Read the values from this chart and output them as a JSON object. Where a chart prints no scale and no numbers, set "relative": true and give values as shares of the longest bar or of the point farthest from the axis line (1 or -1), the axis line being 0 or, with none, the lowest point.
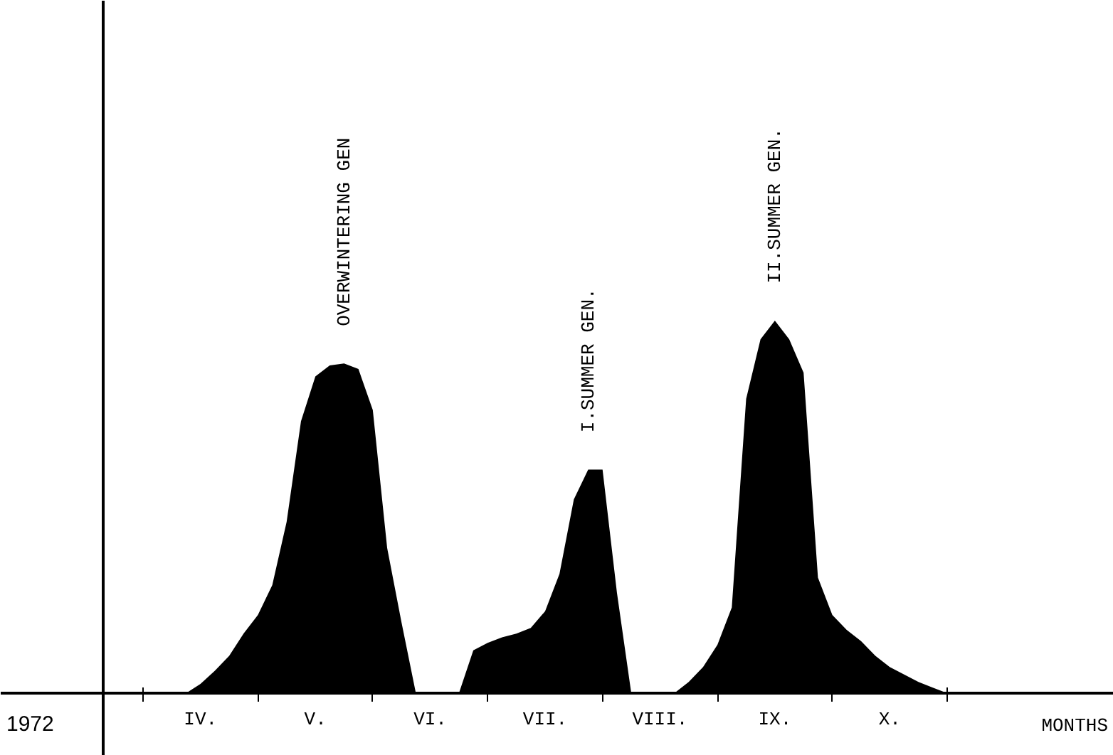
{
  "chart_data": {
    "type": "area",
    "relative": true,
    "xlabel": "MONTHS",
    "annotations": [
      "1972"
    ],
    "categories": [
      null,
      null,
      null,
      null,
      "IV.",
      null,
      null,
      null,
      null,
      null,
      null,
      null,
      "V.",
      null,
      null,
      null,
      null,
      null,
      null,
      null,
      "VI.",
      null,
      null,
      null,
      null,
      null,
      null,
      null,
      "VII.",
      null,
      null,
      null,
      null,
      null,
      null,
      null,
      "VIII.",
      null,
      null,
      null,
      null,
      null,
      null,
      null,
      "IX.",
      null,
      null,
      null,
      null,
      null,
      null,
      null,
      "X.",
      null,
      null,
      null,
      null
    ],
    "grid": false,
    "legend": false,
    "series": [
      {
        "name": "OVERWINTERING GEN",
        "color": "#000000",
        "values": [
          null,
          null,
          null,
          0,
          0.025,
          0.06,
          0.1,
          0.16,
          0.21,
          0.29,
          0.46,
          0.73,
          0.85,
          0.88,
          0.885,
          0.87,
          0.76,
          0.39,
          0.19,
          0,
          null,
          null,
          null,
          null,
          null,
          null,
          null,
          null,
          null,
          null,
          null,
          null,
          null,
          null,
          null,
          null,
          null,
          null,
          null,
          null,
          null,
          null,
          null,
          null,
          null,
          null,
          null,
          null,
          null,
          null,
          null,
          null,
          null,
          null,
          null,
          null,
          null
        ]
      },
      {
        "name": "I.SUMMER GEN.",
        "color": "#000000",
        "values": [
          null,
          null,
          null,
          null,
          null,
          null,
          null,
          null,
          null,
          null,
          null,
          null,
          null,
          null,
          null,
          null,
          null,
          null,
          null,
          null,
          null,
          null,
          0,
          0.115,
          0.135,
          0.15,
          0.16,
          0.175,
          0.22,
          0.32,
          0.52,
          0.6,
          0.6,
          0.27,
          0,
          null,
          null,
          null,
          null,
          null,
          null,
          null,
          null,
          null,
          null,
          null,
          null,
          null,
          null,
          null,
          null,
          null,
          null,
          null,
          null,
          null,
          null
        ]
      },
      {
        "name": "II.SUMMER GEN.",
        "color": "#000000",
        "values": [
          null,
          null,
          null,
          null,
          null,
          null,
          null,
          null,
          null,
          null,
          null,
          null,
          null,
          null,
          null,
          null,
          null,
          null,
          null,
          null,
          null,
          null,
          null,
          null,
          null,
          null,
          null,
          null,
          null,
          null,
          null,
          null,
          null,
          null,
          null,
          null,
          null,
          0,
          0.03,
          0.07,
          0.13,
          0.23,
          0.79,
          0.95,
          1,
          0.95,
          0.86,
          0.31,
          0.21,
          0.17,
          0.14,
          0.1,
          0.07,
          0.05,
          0.03,
          0.015,
          0
        ]
      }
    ]
  }
}
